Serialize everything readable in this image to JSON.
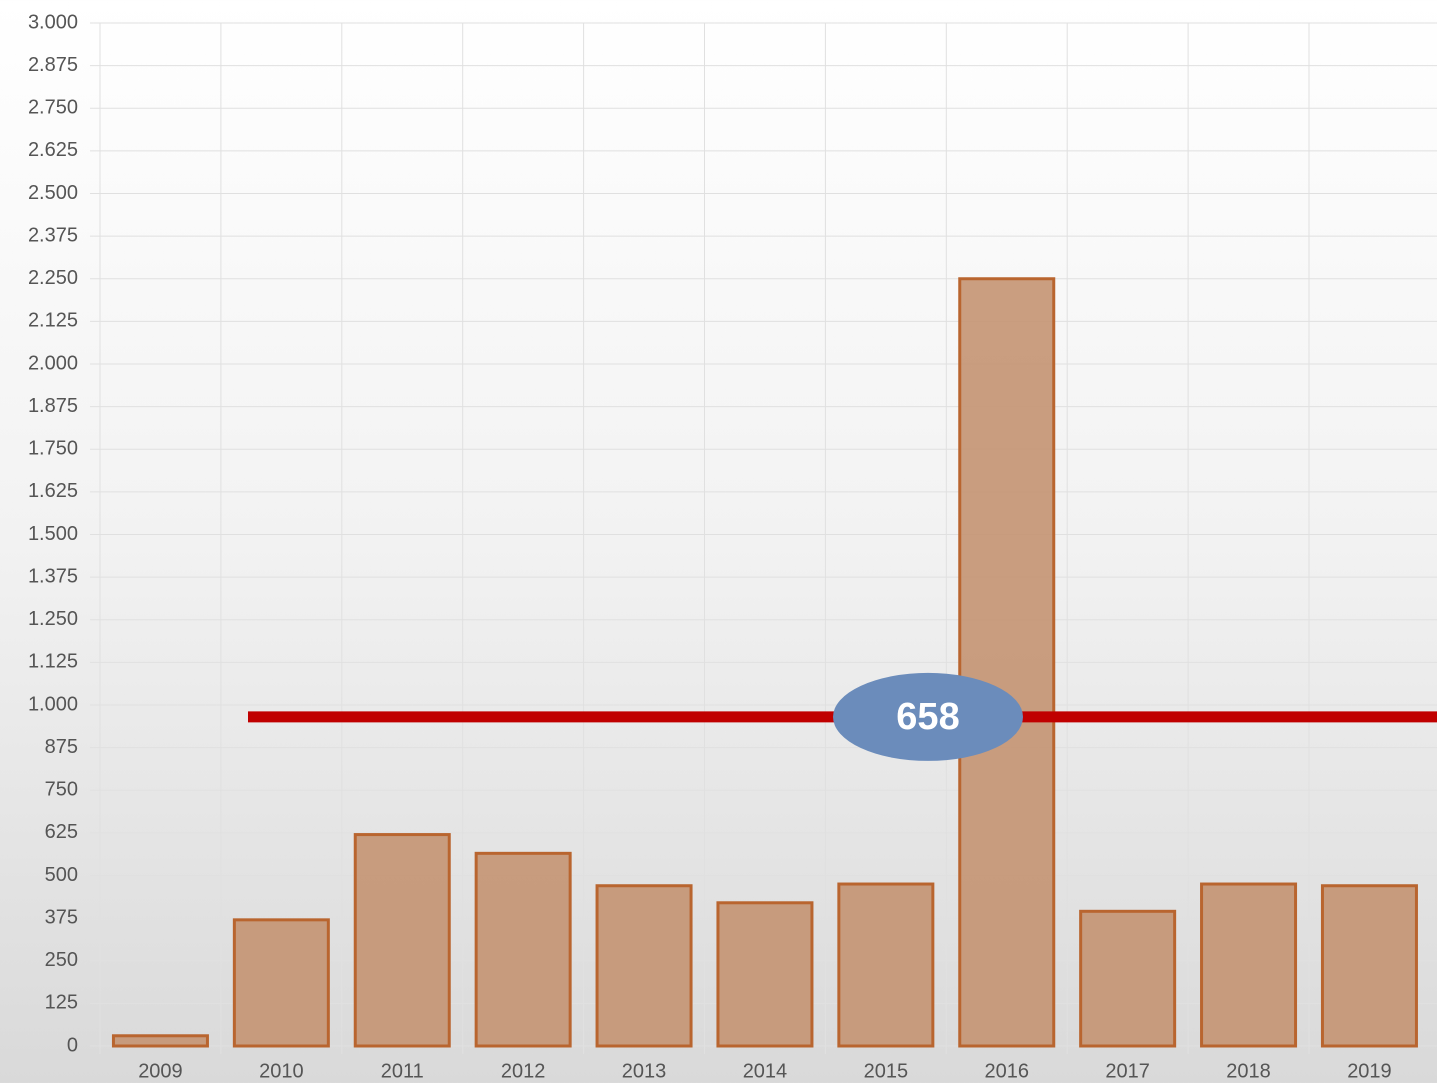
{
  "chart_data": {
    "type": "bar",
    "categories": [
      "2009",
      "2010",
      "2011",
      "2012",
      "2013",
      "2014",
      "2015",
      "2016",
      "2017",
      "2018",
      "2019"
    ],
    "values": [
      30,
      370,
      620,
      565,
      470,
      420,
      475,
      2250,
      395,
      475,
      470
    ],
    "color": "#c49472",
    "edge_color": "#b9652f",
    "ylim": [
      0,
      3000
    ],
    "yticks": [
      0,
      125,
      250,
      375,
      500,
      625,
      750,
      875,
      {
        "value": 1000,
        "label": "1.000"
      },
      {
        "value": 1125,
        "label": "1.125"
      },
      {
        "value": 1250,
        "label": "1.250"
      },
      {
        "value": 1375,
        "label": "1.375"
      },
      {
        "value": 1500,
        "label": "1.500"
      },
      {
        "value": 1625,
        "label": "1.625"
      },
      {
        "value": 1750,
        "label": "1.750"
      },
      {
        "value": 1875,
        "label": "1.875"
      },
      {
        "value": 2000,
        "label": "2.000"
      },
      {
        "value": 2125,
        "label": "2.125"
      },
      {
        "value": 2250,
        "label": "2.250"
      },
      {
        "value": 2375,
        "label": "2.375"
      },
      {
        "value": 2500,
        "label": "2.500"
      },
      {
        "value": 2625,
        "label": "2.625"
      },
      {
        "value": 2750,
        "label": "2.750"
      },
      {
        "value": 2875,
        "label": "2.875"
      },
      {
        "value": 3000,
        "label": "3.000"
      }
    ],
    "grid": true,
    "reference_line": {
      "value": 965,
      "color": "#c00000"
    },
    "annotation": "658"
  }
}
